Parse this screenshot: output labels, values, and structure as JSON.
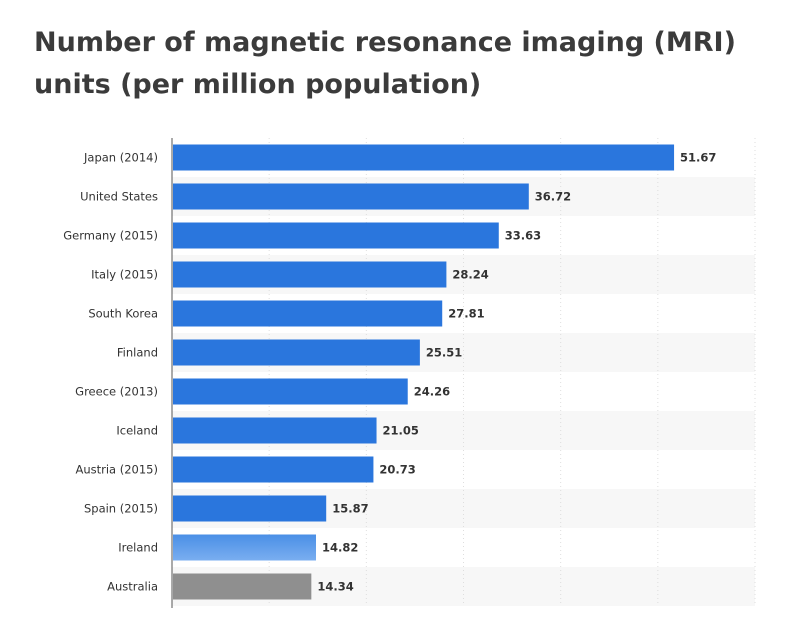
{
  "title": "Number of magnetic resonance imaging (MRI) units (per million population)",
  "colors": {
    "bar": "#2a76dd",
    "bar_ireland_top": "#4a8fe6",
    "bar_ireland_bottom": "#7aaef0",
    "bar_australia": "#8f8f8f",
    "label_muted": "#9a9a9a",
    "grid": "#dedede",
    "band": "#f7f7f7"
  },
  "chart_data": {
    "type": "bar",
    "orientation": "horizontal",
    "title": "Number of magnetic resonance imaging (MRI) units (per million population)",
    "categories": [
      "Japan (2014)",
      "United States",
      "Germany (2015)",
      "Italy (2015)",
      "South Korea",
      "Finland",
      "Greece (2013)",
      "Iceland",
      "Austria (2015)",
      "Spain (2015)",
      "Ireland",
      "Australia"
    ],
    "values": [
      51.67,
      36.72,
      33.63,
      28.24,
      27.81,
      25.51,
      24.26,
      21.05,
      20.73,
      15.87,
      14.82,
      14.34
    ],
    "value_labels": [
      "51.67",
      "36.72",
      "33.63",
      "28.24",
      "27.81",
      "25.51",
      "24.26",
      "21.05",
      "20.73",
      "15.87",
      "14.82",
      "14.34"
    ],
    "xlim": [
      0,
      60
    ],
    "x_gridlines": [
      0,
      10,
      20,
      30,
      40,
      50,
      60
    ],
    "grid": true,
    "legend": "none",
    "highlight": {
      "Ireland": "lighter blue gradient",
      "Australia": "grey"
    }
  }
}
